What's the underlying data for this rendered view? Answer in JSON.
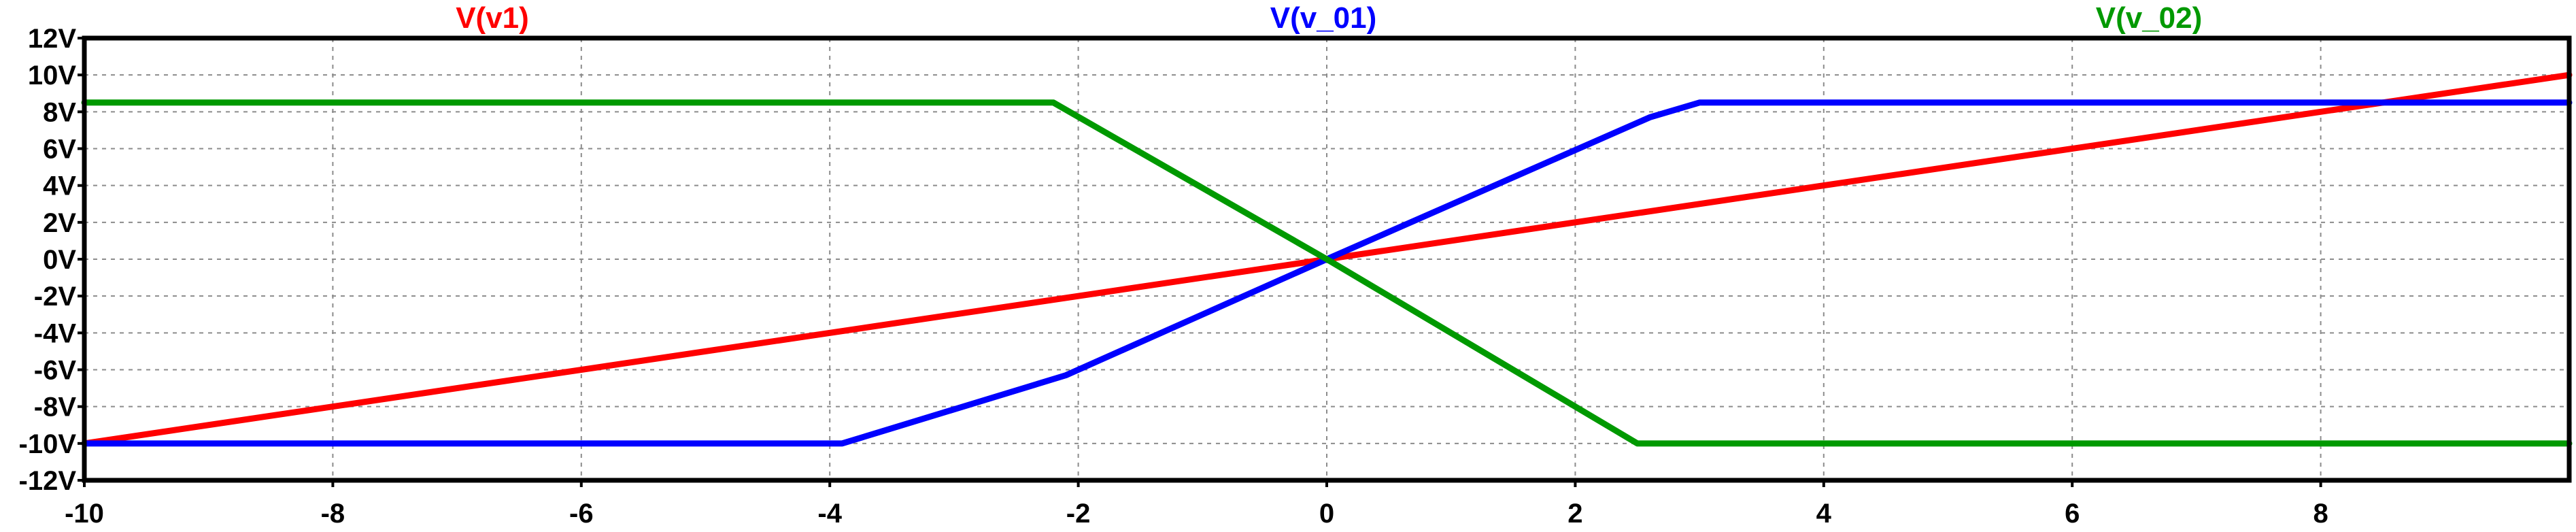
{
  "chart_data": {
    "type": "line",
    "title": "",
    "xlabel": "",
    "ylabel": "",
    "xlim": [
      -10,
      10
    ],
    "ylim": [
      -12,
      12
    ],
    "x_ticks": [
      -10,
      -8,
      -6,
      -4,
      -2,
      0,
      2,
      4,
      6,
      8
    ],
    "x_tick_labels": [
      "-10",
      "-8",
      "-6",
      "-4",
      "-2",
      "0",
      "2",
      "4",
      "6",
      "8"
    ],
    "y_ticks": [
      12,
      10,
      8,
      6,
      4,
      2,
      0,
      -2,
      -4,
      -6,
      -8,
      -10,
      -12
    ],
    "y_tick_labels": [
      "12V",
      "10V",
      "8V",
      "6V",
      "4V",
      "2V",
      "0V",
      "-2V",
      "-4V",
      "-6V",
      "-8V",
      "-10V",
      "-12V"
    ],
    "grid": true,
    "legend_position": "top",
    "series": [
      {
        "name": "V(v1)",
        "color": "#ff0000",
        "x": [
          -10,
          10
        ],
        "y": [
          -10,
          10
        ]
      },
      {
        "name": "V(v_01)",
        "color": "#0000ff",
        "x": [
          -10,
          -3.9,
          -2.1,
          0,
          2.6,
          3.0,
          10
        ],
        "y": [
          -10,
          -10,
          -6.3,
          0,
          7.7,
          8.5,
          8.5
        ]
      },
      {
        "name": "V(v_02)",
        "color": "#009900",
        "x": [
          -10,
          -2.2,
          0,
          2.5,
          10
        ],
        "y": [
          8.5,
          8.5,
          0,
          -10,
          -10
        ]
      }
    ]
  }
}
